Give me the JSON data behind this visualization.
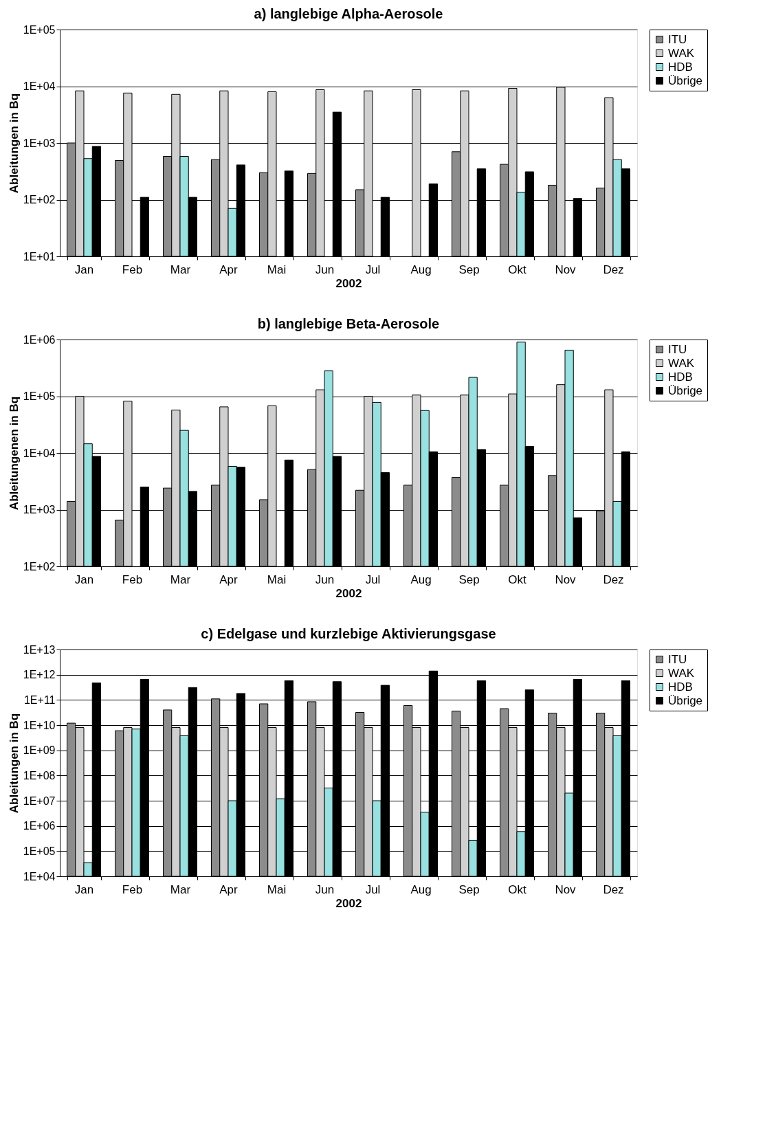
{
  "chart_data": [
    {
      "type": "bar",
      "title": "a) langlebige Alpha-Aerosole",
      "xlabel": "2002",
      "ylabel": "Ableitungen in Bq",
      "log": true,
      "grid": "y",
      "legend": "right",
      "categories": [
        "Jan",
        "Feb",
        "Mar",
        "Apr",
        "Mai",
        "Jun",
        "Jul",
        "Aug",
        "Sep",
        "Okt",
        "Nov",
        "Dez"
      ],
      "ylim": [
        10,
        100000
      ],
      "yticks": [
        {
          "value": 10,
          "label": "1E+01"
        },
        {
          "value": 100,
          "label": "1E+02"
        },
        {
          "value": 1000,
          "label": "1E+03"
        },
        {
          "value": 10000,
          "label": "1E+04"
        },
        {
          "value": 100000,
          "label": "1E+05"
        }
      ],
      "series": [
        {
          "name": "ITU",
          "color": "#8c8c8c",
          "values": [
            1000,
            490,
            580,
            510,
            300,
            290,
            150,
            null,
            700,
            420,
            180,
            160
          ]
        },
        {
          "name": "WAK",
          "color": "#d0d0d0",
          "values": [
            8300,
            7600,
            7200,
            8300,
            8000,
            8700,
            8300,
            8700,
            8300,
            9200,
            9600,
            6300
          ]
        },
        {
          "name": "HDB",
          "color": "#99e0e0",
          "values": [
            530,
            null,
            580,
            70,
            null,
            null,
            null,
            null,
            null,
            135,
            null,
            510
          ]
        },
        {
          "name": "Übrige",
          "color": "#000000",
          "values": [
            870,
            110,
            110,
            410,
            320,
            3500,
            110,
            190,
            350,
            310,
            105,
            350
          ]
        }
      ]
    },
    {
      "type": "bar",
      "title": "b) langlebige Beta-Aerosole",
      "xlabel": "2002",
      "ylabel": "Ableitungenen in Bq",
      "log": true,
      "grid": "y",
      "legend": "right",
      "categories": [
        "Jan",
        "Feb",
        "Mar",
        "Apr",
        "Mai",
        "Jun",
        "Jul",
        "Aug",
        "Sep",
        "Okt",
        "Nov",
        "Dez"
      ],
      "ylim": [
        100,
        1000000
      ],
      "yticks": [
        {
          "value": 100,
          "label": "1E+02"
        },
        {
          "value": 1000,
          "label": "1E+03"
        },
        {
          "value": 10000,
          "label": "1E+04"
        },
        {
          "value": 100000,
          "label": "1E+05"
        },
        {
          "value": 1000000,
          "label": "1E+06"
        }
      ],
      "series": [
        {
          "name": "ITU",
          "color": "#8c8c8c",
          "values": [
            1400,
            650,
            2400,
            2700,
            1500,
            5100,
            2200,
            2700,
            3700,
            2700,
            4000,
            950
          ]
        },
        {
          "name": "WAK",
          "color": "#d0d0d0",
          "values": [
            100000,
            82000,
            57000,
            65000,
            68000,
            130000,
            100000,
            105000,
            105000,
            110000,
            160000,
            130000
          ]
        },
        {
          "name": "HDB",
          "color": "#99e0e0",
          "values": [
            14500,
            null,
            25000,
            5800,
            null,
            280000,
            78000,
            56000,
            215000,
            900000,
            650000,
            1400
          ]
        },
        {
          "name": "Übrige",
          "color": "#000000",
          "values": [
            8700,
            2500,
            2100,
            5600,
            7500,
            8700,
            4500,
            10500,
            11500,
            13000,
            720,
            10500
          ]
        }
      ]
    },
    {
      "type": "bar",
      "title": "c) Edelgase und kurzlebige Aktivierungsgase",
      "xlabel": "2002",
      "ylabel": "Ableitungen in Bq",
      "log": true,
      "grid": "y",
      "legend": "right",
      "categories": [
        "Jan",
        "Feb",
        "Mar",
        "Apr",
        "Mai",
        "Jun",
        "Jul",
        "Aug",
        "Sep",
        "Okt",
        "Nov",
        "Dez"
      ],
      "ylim": [
        10000,
        10000000000000
      ],
      "yticks": [
        {
          "value": 10000,
          "label": "1E+04"
        },
        {
          "value": 100000,
          "label": "1E+05"
        },
        {
          "value": 1000000,
          "label": "1E+06"
        },
        {
          "value": 10000000,
          "label": "1E+07"
        },
        {
          "value": 100000000,
          "label": "1E+08"
        },
        {
          "value": 1000000000,
          "label": "1E+09"
        },
        {
          "value": 10000000000,
          "label": "1E+10"
        },
        {
          "value": 100000000000,
          "label": "1E+11"
        },
        {
          "value": 1000000000000,
          "label": "1E+12"
        },
        {
          "value": 10000000000000,
          "label": "1E+13"
        }
      ],
      "series": [
        {
          "name": "ITU",
          "color": "#8c8c8c",
          "values": [
            12000000000,
            6000000000,
            40000000000,
            110000000000,
            70000000000,
            85000000000,
            32000000000,
            60000000000,
            36000000000,
            45000000000,
            30000000000,
            30000000000
          ]
        },
        {
          "name": "WAK",
          "color": "#d0d0d0",
          "values": [
            8000000000,
            8000000000,
            8000000000,
            8000000000,
            8000000000,
            8000000000,
            8000000000,
            8000000000,
            8000000000,
            8000000000,
            8000000000,
            8000000000
          ]
        },
        {
          "name": "HDB",
          "color": "#99e0e0",
          "values": [
            35000,
            7000000000,
            3800000000,
            10000000,
            12000000,
            32000000,
            10000000,
            3500000,
            270000,
            600000,
            20000000,
            3800000000
          ]
        },
        {
          "name": "Übrige",
          "color": "#000000",
          "values": [
            470000000000,
            650000000000,
            310000000000,
            180000000000,
            580000000000,
            530000000000,
            380000000000,
            1400000000000,
            580000000000,
            250000000000,
            650000000000,
            580000000000
          ]
        }
      ]
    }
  ]
}
